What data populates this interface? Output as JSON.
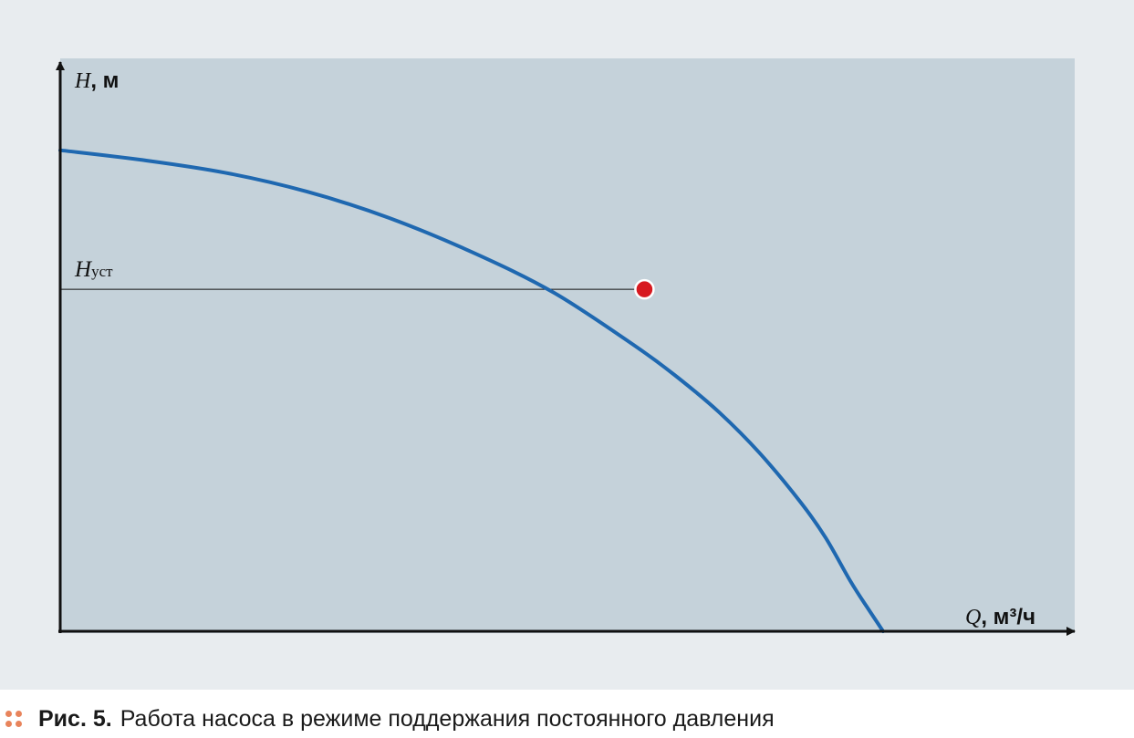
{
  "chart_data": {
    "type": "line",
    "xlabel": "Q",
    "xunit": ", м³/ч",
    "ylabel": "H",
    "yunit": ", м",
    "xlim": [
      0,
      1
    ],
    "ylim": [
      0,
      1
    ],
    "grid": false,
    "series": [
      {
        "color": "#1f68b0",
        "x": [
          0,
          0.1,
          0.2,
          0.3,
          0.4,
          0.5,
          0.6,
          0.7,
          0.75,
          0.8,
          0.85,
          0.9,
          0.93,
          0.96,
          0.98,
          1.0
        ],
        "y": [
          0.837,
          0.82,
          0.798,
          0.765,
          0.719,
          0.66,
          0.589,
          0.495,
          0.442,
          0.382,
          0.31,
          0.224,
          0.163,
          0.088,
          0.043,
          0.0
        ]
      }
    ],
    "reference_line": {
      "label": "H",
      "label_sub": "уст",
      "y": 0.595
    },
    "operating_point": {
      "x": 0.71,
      "y": 0.595,
      "color": "#d71920"
    },
    "colors": {
      "plot_background": "#c5d2da",
      "frame_background": "#e8ecef",
      "axis": "#111111"
    }
  },
  "caption": {
    "label": "Рис. 5.",
    "text": "Работа насоса в режиме поддержания постоянного давления",
    "dots_color": "#e8845c"
  }
}
